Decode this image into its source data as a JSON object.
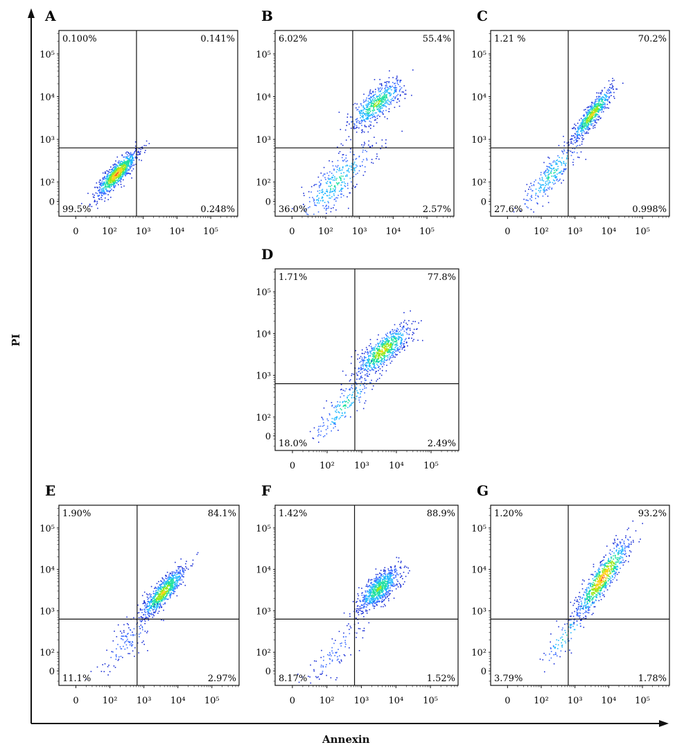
{
  "axes": {
    "x_title": "Annexin",
    "y_title": "PI"
  },
  "quadrant_color": "#111111",
  "dot_colors": [
    "#1a2fd6",
    "#3a6cff",
    "#1fb7ff",
    "#1ee0a0",
    "#9be81b",
    "#ffd21a",
    "#ff5a14"
  ],
  "chart_data": [
    {
      "type": "scatter",
      "title": "A",
      "xlabel": "Annexin",
      "ylabel": "PI",
      "x_ticks": [
        "0",
        "10²",
        "10³",
        "10⁴",
        "10⁵"
      ],
      "y_ticks": [
        "0",
        "10²",
        "10³",
        "10⁴",
        "10⁵"
      ],
      "quadrants": {
        "upper_left": "0.100%",
        "upper_right": "0.141%",
        "lower_left": "99.5%",
        "lower_right": "0.248%"
      },
      "clusters": [
        {
          "center": [
            2.2,
            2.2
          ],
          "spread": [
            0.3,
            0.22
          ],
          "tilt": 0.75,
          "share": 1.0,
          "peak": "red"
        }
      ]
    },
    {
      "type": "scatter",
      "title": "B",
      "xlabel": "Annexin",
      "ylabel": "PI",
      "x_ticks": [
        "0",
        "10²",
        "10³",
        "10⁴",
        "10⁵"
      ],
      "y_ticks": [
        "0",
        "10²",
        "10³",
        "10⁴",
        "10⁵"
      ],
      "quadrants": {
        "upper_left": "6.02%",
        "upper_right": "55.4%",
        "lower_left": "36.0%",
        "lower_right": "2.57%"
      },
      "clusters": [
        {
          "center": [
            3.5,
            3.85
          ],
          "spread": [
            0.4,
            0.3
          ],
          "tilt": 0.55,
          "share": 0.6,
          "peak": "green"
        },
        {
          "center": [
            2.3,
            2.0
          ],
          "spread": [
            0.55,
            0.45
          ],
          "tilt": 0.7,
          "share": 0.4,
          "peak": "cyan"
        }
      ]
    },
    {
      "type": "scatter",
      "title": "C",
      "xlabel": "Annexin",
      "ylabel": "PI",
      "x_ticks": [
        "0",
        "10²",
        "10³",
        "10⁴",
        "10⁵"
      ],
      "y_ticks": [
        "0",
        "10²",
        "10³",
        "10⁴",
        "10⁵"
      ],
      "quadrants": {
        "upper_left": "1.21 %",
        "upper_right": "70.2%",
        "lower_left": "27.6%",
        "lower_right": "0.998%"
      },
      "clusters": [
        {
          "center": [
            3.5,
            3.6
          ],
          "spread": [
            0.3,
            0.22
          ],
          "tilt": 0.95,
          "share": 0.7,
          "peak": "orange"
        },
        {
          "center": [
            2.3,
            2.2
          ],
          "spread": [
            0.45,
            0.35
          ],
          "tilt": 0.85,
          "share": 0.3,
          "peak": "cyan"
        }
      ]
    },
    {
      "type": "scatter",
      "title": "D",
      "xlabel": "Annexin",
      "ylabel": "PI",
      "x_ticks": [
        "0",
        "10²",
        "10³",
        "10⁴",
        "10⁵"
      ],
      "y_ticks": [
        "0",
        "10²",
        "10³",
        "10⁴",
        "10⁵"
      ],
      "quadrants": {
        "upper_left": "1.71%",
        "upper_right": "77.8%",
        "lower_left": "18.0%",
        "lower_right": "2.49%"
      },
      "clusters": [
        {
          "center": [
            3.6,
            3.6
          ],
          "spread": [
            0.38,
            0.3
          ],
          "tilt": 0.6,
          "share": 0.78,
          "peak": "orange"
        },
        {
          "center": [
            2.5,
            2.3
          ],
          "spread": [
            0.45,
            0.35
          ],
          "tilt": 0.85,
          "share": 0.22,
          "peak": "cyan"
        }
      ]
    },
    {
      "type": "scatter",
      "title": "E",
      "xlabel": "Annexin",
      "ylabel": "PI",
      "x_ticks": [
        "0",
        "10²",
        "10³",
        "10⁴",
        "10⁵"
      ],
      "y_ticks": [
        "0",
        "10²",
        "10³",
        "10⁴",
        "10⁵"
      ],
      "quadrants": {
        "upper_left": "1.90%",
        "upper_right": "84.1%",
        "lower_left": "11.1%",
        "lower_right": "2.97%"
      },
      "clusters": [
        {
          "center": [
            3.55,
            3.45
          ],
          "spread": [
            0.32,
            0.26
          ],
          "tilt": 0.8,
          "share": 0.85,
          "peak": "orange"
        },
        {
          "center": [
            2.5,
            2.3
          ],
          "spread": [
            0.45,
            0.4
          ],
          "tilt": 0.8,
          "share": 0.15,
          "peak": "blue"
        }
      ]
    },
    {
      "type": "scatter",
      "title": "F",
      "xlabel": "Annexin",
      "ylabel": "PI",
      "x_ticks": [
        "0",
        "10²",
        "10³",
        "10⁴",
        "10⁵"
      ],
      "y_ticks": [
        "0",
        "10²",
        "10³",
        "10⁴",
        "10⁵"
      ],
      "quadrants": {
        "upper_left": "1.42%",
        "upper_right": "88.9%",
        "lower_left": "8.17%",
        "lower_right": "1.52%"
      },
      "clusters": [
        {
          "center": [
            3.5,
            3.55
          ],
          "spread": [
            0.3,
            0.3
          ],
          "tilt": 0.6,
          "share": 0.88,
          "peak": "green"
        },
        {
          "center": [
            2.2,
            2.0
          ],
          "spread": [
            0.45,
            0.4
          ],
          "tilt": 0.8,
          "share": 0.12,
          "peak": "blue"
        }
      ]
    },
    {
      "type": "scatter",
      "title": "G",
      "xlabel": "Annexin",
      "ylabel": "PI",
      "x_ticks": [
        "0",
        "10²",
        "10³",
        "10⁴",
        "10⁵"
      ],
      "y_ticks": [
        "0",
        "10²",
        "10³",
        "10⁴",
        "10⁵"
      ],
      "quadrants": {
        "upper_left": "1.20%",
        "upper_right": "93.2%",
        "lower_left": "3.79%",
        "lower_right": "1.78%"
      },
      "clusters": [
        {
          "center": [
            3.8,
            3.8
          ],
          "spread": [
            0.4,
            0.35
          ],
          "tilt": 1.05,
          "share": 0.9,
          "peak": "red"
        },
        {
          "center": [
            2.7,
            2.4
          ],
          "spread": [
            0.35,
            0.3
          ],
          "tilt": 0.9,
          "share": 0.1,
          "peak": "cyan"
        }
      ]
    }
  ]
}
